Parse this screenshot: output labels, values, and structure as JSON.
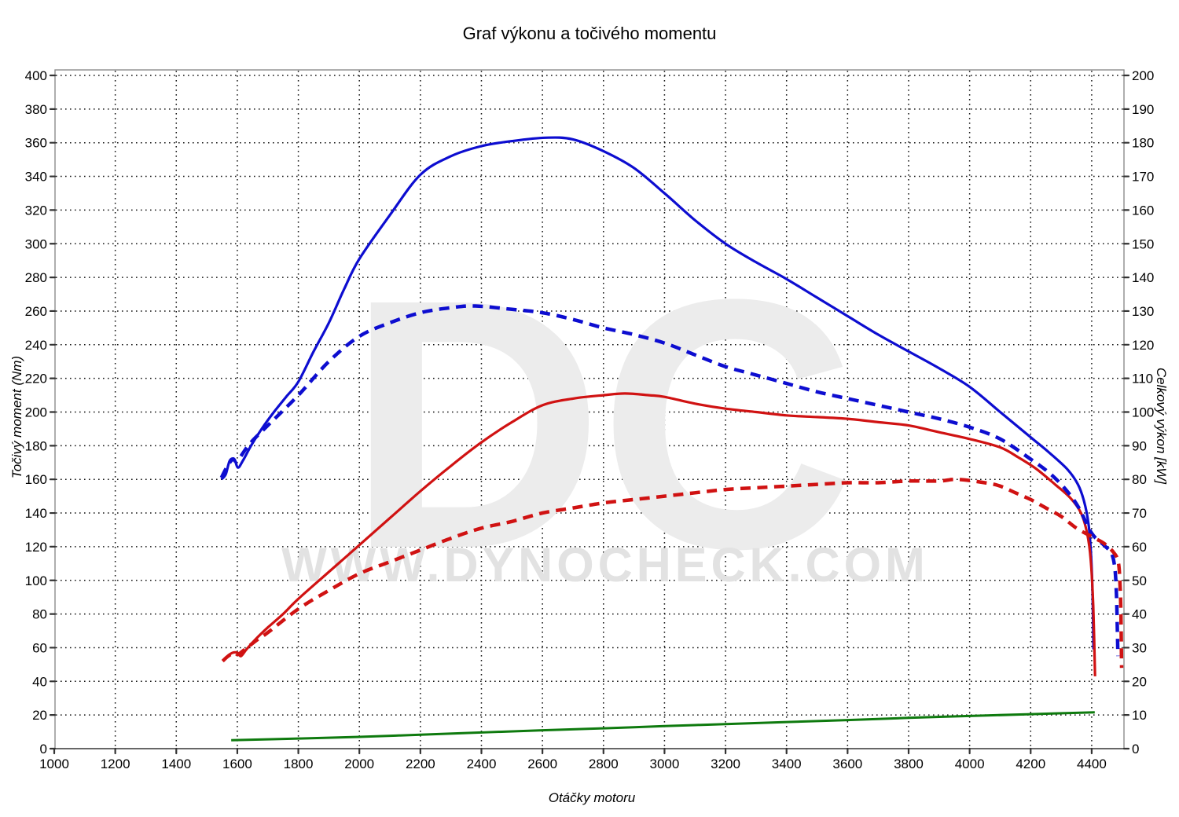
{
  "chart_data": {
    "type": "line",
    "title": "Graf výkonu a točivého momentu",
    "xlabel": "Otáčky motoru",
    "ylabel_left": "Točivý moment (Nm)",
    "ylabel_right": "Celkový výkon [kW]",
    "x_axis": {
      "min": 1000,
      "max": 4500,
      "tick_step": 200,
      "tick_labels": [
        "1000",
        "1200",
        "1400",
        "1600",
        "1800",
        "2000",
        "2200",
        "2400",
        "2600",
        "2800",
        "3000",
        "3200",
        "3400",
        "3600",
        "3800",
        "4000",
        "4200",
        "4400"
      ]
    },
    "y_axis_left": {
      "min": 0,
      "max": 400,
      "tick_step": 20,
      "tick_labels": [
        "0",
        "20",
        "40",
        "60",
        "80",
        "100",
        "120",
        "140",
        "160",
        "180",
        "200",
        "220",
        "240",
        "260",
        "280",
        "300",
        "320",
        "340",
        "360",
        "380",
        "400"
      ]
    },
    "y_axis_right": {
      "min": 0,
      "max": 200,
      "tick_step": 10,
      "tick_labels": [
        "0",
        "10",
        "20",
        "30",
        "40",
        "50",
        "60",
        "70",
        "80",
        "90",
        "100",
        "110",
        "120",
        "130",
        "140",
        "150",
        "160",
        "170",
        "180",
        "190",
        "200"
      ]
    },
    "grid": true,
    "legend": "none",
    "watermark": {
      "big_text": "DC",
      "url_text": "WWW.DYNOCHECK.COM",
      "big_color": "#ececec",
      "url_color": "#e2e2e2"
    },
    "colors": {
      "blue": "#0d0dd0",
      "red": "#d01212",
      "green": "#0e7a0e",
      "grid": "#141414",
      "border": "#8c8c8c",
      "axis": "#444444",
      "text": "#000000"
    },
    "units_note": "points are [rpm, value on left Nm scale]; right kW scale = Nm/2",
    "series": [
      {
        "name": "blue_solid",
        "color_key": "blue",
        "style": "solid",
        "width": 3.2,
        "points": [
          [
            1548,
            160
          ],
          [
            1562,
            163
          ],
          [
            1575,
            171
          ],
          [
            1590,
            172
          ],
          [
            1602,
            167
          ],
          [
            1618,
            171
          ],
          [
            1645,
            180
          ],
          [
            1680,
            190
          ],
          [
            1720,
            200
          ],
          [
            1760,
            209
          ],
          [
            1800,
            218
          ],
          [
            1850,
            236
          ],
          [
            1900,
            253
          ],
          [
            1950,
            273
          ],
          [
            2000,
            291
          ],
          [
            2100,
            317
          ],
          [
            2200,
            341
          ],
          [
            2300,
            352
          ],
          [
            2400,
            358
          ],
          [
            2500,
            361
          ],
          [
            2610,
            363
          ],
          [
            2700,
            362
          ],
          [
            2800,
            355
          ],
          [
            2900,
            345
          ],
          [
            3000,
            330
          ],
          [
            3100,
            314
          ],
          [
            3200,
            300
          ],
          [
            3300,
            289
          ],
          [
            3400,
            279
          ],
          [
            3500,
            268
          ],
          [
            3600,
            257
          ],
          [
            3700,
            246
          ],
          [
            3800,
            236
          ],
          [
            3900,
            226
          ],
          [
            4000,
            215
          ],
          [
            4100,
            200
          ],
          [
            4200,
            185
          ],
          [
            4260,
            176
          ],
          [
            4320,
            166
          ],
          [
            4355,
            157
          ],
          [
            4375,
            147
          ],
          [
            4390,
            133
          ],
          [
            4398,
            115
          ],
          [
            4403,
            90
          ],
          [
            4406,
            59
          ]
        ]
      },
      {
        "name": "red_solid",
        "color_key": "red",
        "style": "solid",
        "width": 3.2,
        "points": [
          [
            1552,
            52
          ],
          [
            1568,
            55
          ],
          [
            1585,
            57
          ],
          [
            1600,
            57
          ],
          [
            1612,
            55
          ],
          [
            1630,
            59
          ],
          [
            1660,
            65
          ],
          [
            1700,
            72
          ],
          [
            1750,
            80
          ],
          [
            1800,
            89
          ],
          [
            1900,
            105
          ],
          [
            2000,
            121
          ],
          [
            2100,
            137
          ],
          [
            2200,
            153
          ],
          [
            2300,
            168
          ],
          [
            2400,
            182
          ],
          [
            2500,
            194
          ],
          [
            2600,
            204
          ],
          [
            2700,
            208
          ],
          [
            2800,
            210
          ],
          [
            2870,
            211
          ],
          [
            2950,
            210
          ],
          [
            3000,
            209
          ],
          [
            3100,
            205
          ],
          [
            3200,
            202
          ],
          [
            3300,
            200
          ],
          [
            3400,
            198
          ],
          [
            3500,
            197
          ],
          [
            3600,
            196
          ],
          [
            3700,
            194
          ],
          [
            3800,
            192
          ],
          [
            3900,
            188
          ],
          [
            4000,
            184
          ],
          [
            4100,
            179
          ],
          [
            4160,
            173
          ],
          [
            4220,
            166
          ],
          [
            4280,
            157
          ],
          [
            4330,
            149
          ],
          [
            4365,
            140
          ],
          [
            4385,
            128
          ],
          [
            4397,
            112
          ],
          [
            4405,
            85
          ],
          [
            4411,
            43
          ]
        ]
      },
      {
        "name": "blue_dashed",
        "color_key": "blue",
        "style": "dashed",
        "width": 4.5,
        "points": [
          [
            1548,
            161
          ],
          [
            1565,
            167
          ],
          [
            1585,
            172
          ],
          [
            1600,
            171
          ],
          [
            1640,
            181
          ],
          [
            1700,
            192
          ],
          [
            1800,
            210
          ],
          [
            1900,
            230
          ],
          [
            2000,
            245
          ],
          [
            2100,
            253
          ],
          [
            2200,
            259
          ],
          [
            2300,
            262
          ],
          [
            2380,
            263
          ],
          [
            2500,
            261
          ],
          [
            2600,
            259
          ],
          [
            2700,
            255
          ],
          [
            2800,
            250
          ],
          [
            2900,
            246
          ],
          [
            3000,
            241
          ],
          [
            3100,
            234
          ],
          [
            3200,
            227
          ],
          [
            3300,
            222
          ],
          [
            3400,
            217
          ],
          [
            3500,
            212
          ],
          [
            3600,
            208
          ],
          [
            3700,
            204
          ],
          [
            3800,
            200
          ],
          [
            3900,
            196
          ],
          [
            4000,
            191
          ],
          [
            4100,
            184
          ],
          [
            4200,
            172
          ],
          [
            4260,
            164
          ],
          [
            4310,
            155
          ],
          [
            4355,
            144
          ],
          [
            4400,
            128
          ],
          [
            4440,
            121
          ],
          [
            4465,
            116
          ],
          [
            4476,
            107
          ],
          [
            4481,
            92
          ],
          [
            4484,
            72
          ],
          [
            4486,
            55
          ]
        ]
      },
      {
        "name": "red_dashed",
        "color_key": "red",
        "style": "dashed",
        "width": 4.5,
        "points": [
          [
            1552,
            52
          ],
          [
            1570,
            55
          ],
          [
            1590,
            57
          ],
          [
            1602,
            56
          ],
          [
            1625,
            59
          ],
          [
            1660,
            64
          ],
          [
            1700,
            69
          ],
          [
            1800,
            83
          ],
          [
            1900,
            94
          ],
          [
            2000,
            104
          ],
          [
            2100,
            111
          ],
          [
            2200,
            118
          ],
          [
            2300,
            125
          ],
          [
            2400,
            131
          ],
          [
            2500,
            135
          ],
          [
            2600,
            140
          ],
          [
            2700,
            143
          ],
          [
            2800,
            146
          ],
          [
            2900,
            148
          ],
          [
            3000,
            150
          ],
          [
            3100,
            152
          ],
          [
            3200,
            154
          ],
          [
            3300,
            155
          ],
          [
            3400,
            156
          ],
          [
            3500,
            157
          ],
          [
            3600,
            158
          ],
          [
            3700,
            158
          ],
          [
            3800,
            159
          ],
          [
            3900,
            159
          ],
          [
            3960,
            160
          ],
          [
            4050,
            158
          ],
          [
            4100,
            156
          ],
          [
            4150,
            152
          ],
          [
            4200,
            148
          ],
          [
            4250,
            143
          ],
          [
            4300,
            138
          ],
          [
            4350,
            131
          ],
          [
            4400,
            126
          ],
          [
            4440,
            122
          ],
          [
            4470,
            117
          ],
          [
            4487,
            111
          ],
          [
            4493,
            97
          ],
          [
            4496,
            78
          ],
          [
            4498,
            48
          ]
        ]
      },
      {
        "name": "green_solid",
        "color_key": "green",
        "style": "solid",
        "width": 3,
        "points": [
          [
            1580,
            5
          ],
          [
            1800,
            6
          ],
          [
            2000,
            7
          ],
          [
            2200,
            8.3
          ],
          [
            2400,
            9.6
          ],
          [
            2600,
            10.9
          ],
          [
            2800,
            12.1
          ],
          [
            3000,
            13.4
          ],
          [
            3200,
            14.6
          ],
          [
            3400,
            15.8
          ],
          [
            3600,
            17
          ],
          [
            3800,
            18.3
          ],
          [
            4000,
            19.4
          ],
          [
            4200,
            20.5
          ],
          [
            4410,
            21.6
          ]
        ]
      }
    ]
  }
}
